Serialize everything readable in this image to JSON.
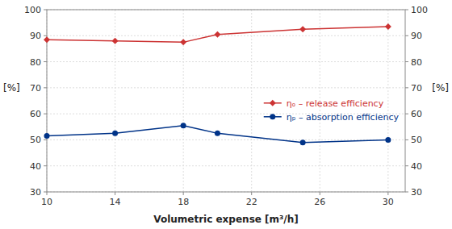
{
  "chart_data": {
    "type": "line",
    "xlabel": "Volumetric expense [m³/h]",
    "ylabel": "[%]",
    "y2label": "[%]",
    "x": [
      10,
      14,
      18,
      20,
      25,
      30
    ],
    "series": [
      {
        "name": "ηₒ – release efficiency",
        "color": "#cc3333",
        "marker": "diamond",
        "values": [
          88.5,
          88.0,
          87.5,
          90.5,
          92.5,
          93.5
        ]
      },
      {
        "name": "ηₚ – absorption efficiency",
        "color": "#003388",
        "marker": "circle",
        "values": [
          51.5,
          52.5,
          55.5,
          52.5,
          49.0,
          50.0
        ]
      }
    ],
    "xlim": [
      10,
      31
    ],
    "xticks": [
      10,
      14,
      18,
      22,
      26,
      30
    ],
    "ylim": [
      30,
      100
    ],
    "yticks": [
      30,
      40,
      50,
      60,
      70,
      80,
      90,
      100
    ],
    "y2lim": [
      30,
      100
    ],
    "y2ticks": [
      30,
      40,
      50,
      60,
      70,
      80,
      90,
      100
    ],
    "grid": true,
    "legend": "right"
  }
}
